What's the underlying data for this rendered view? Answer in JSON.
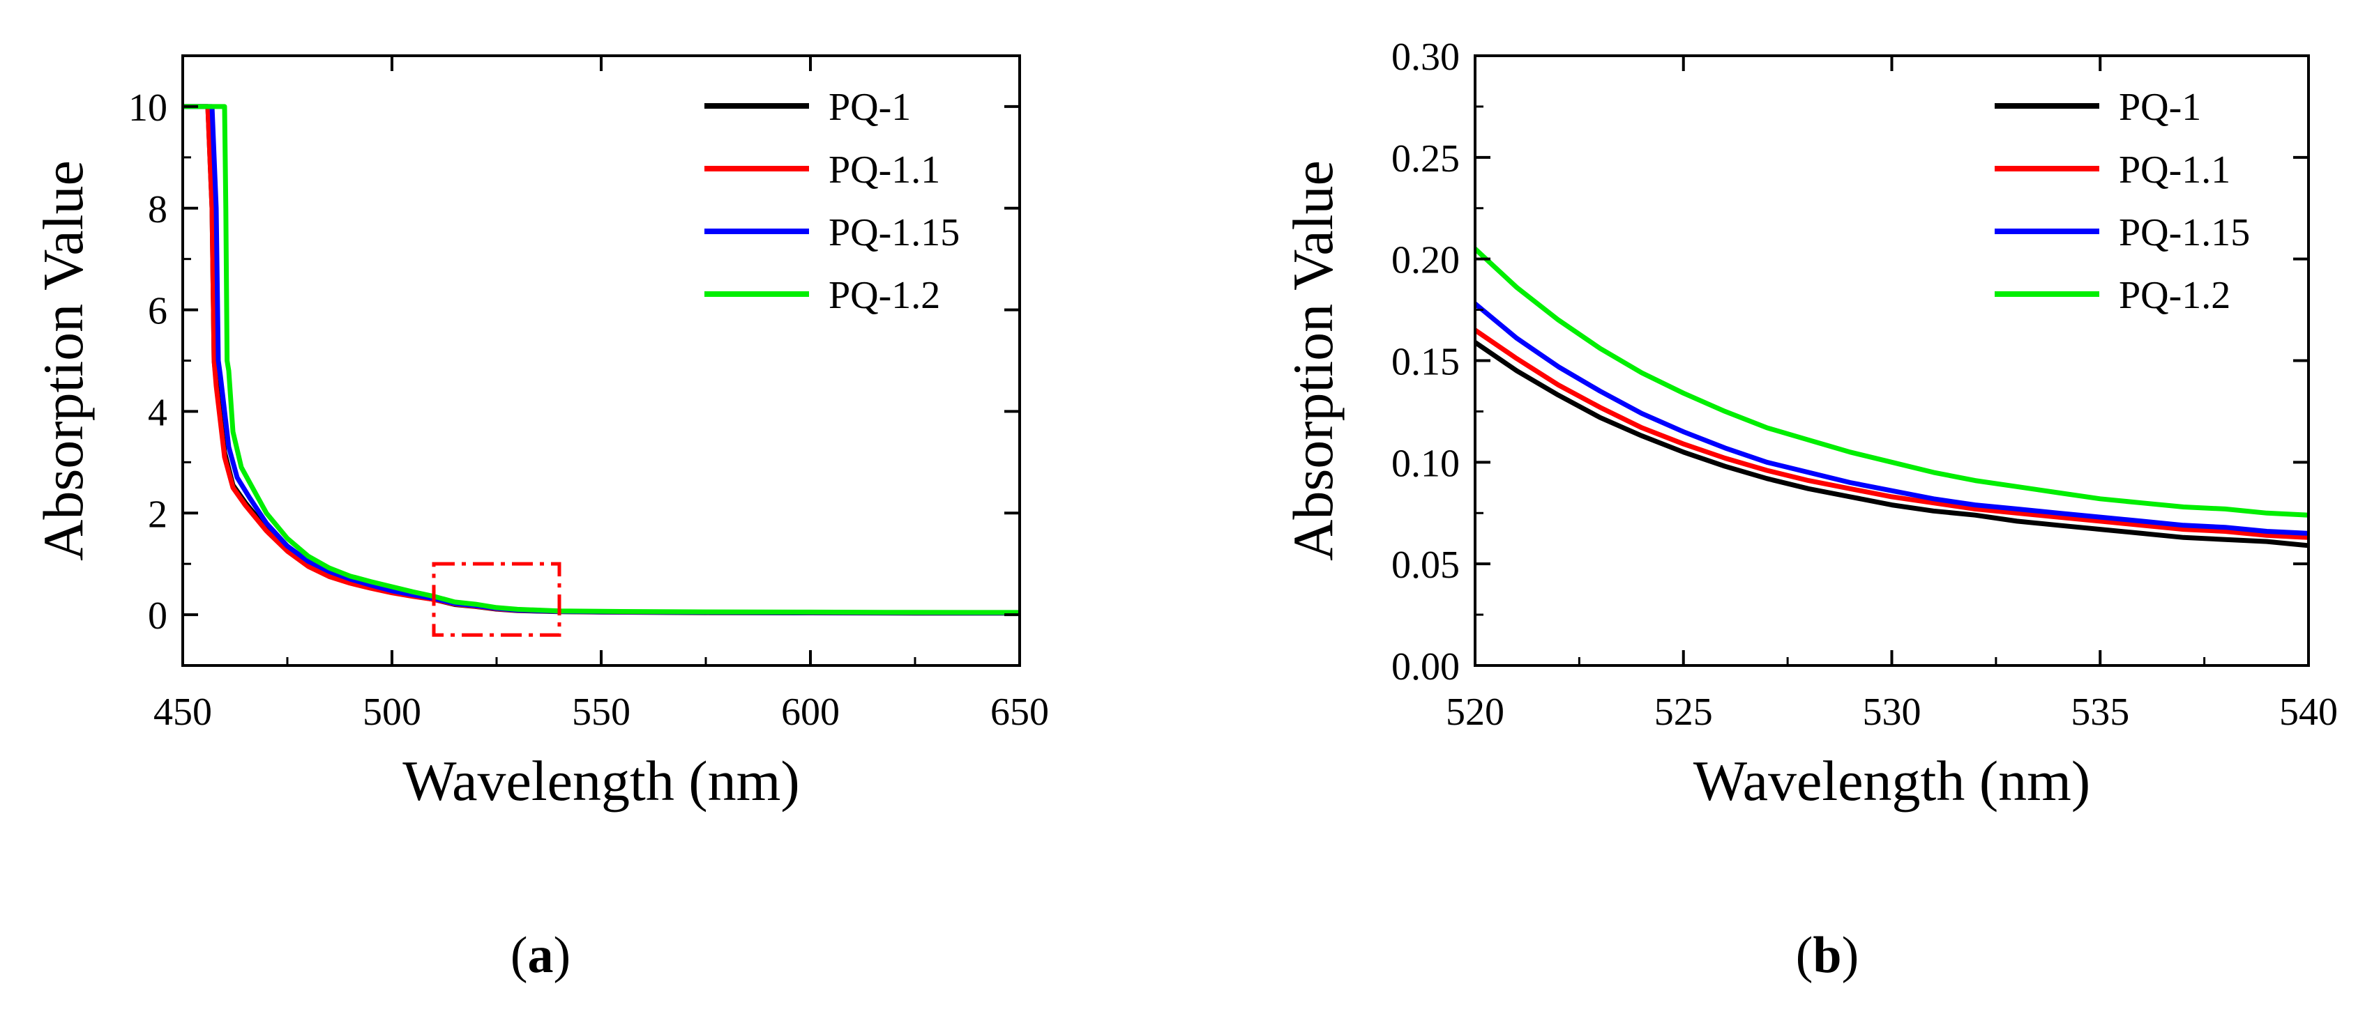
{
  "chart_data": [
    {
      "panel": "a",
      "type": "line",
      "xlabel": "Wavelength (nm)",
      "ylabel": "Absorption Value",
      "xlim": [
        450,
        650
      ],
      "ylim": [
        -1,
        11
      ],
      "xticks": [
        450,
        500,
        550,
        600,
        650
      ],
      "yticks": [
        0,
        2,
        4,
        6,
        8,
        10
      ],
      "legend_position": "top-right",
      "zoom_region": {
        "x": [
          510,
          540
        ],
        "y": [
          -0.4,
          1.0
        ],
        "color": "#ff0000",
        "style": "dash-dot"
      },
      "series": [
        {
          "name": "PQ-1",
          "color": "#000000",
          "x": [
            450,
            456,
            457,
            457.5,
            458,
            460,
            462,
            465,
            470,
            475,
            480,
            485,
            490,
            495,
            500,
            505,
            510,
            515,
            520,
            525,
            530,
            540,
            550,
            575,
            600,
            625,
            650
          ],
          "y": [
            10,
            10,
            8,
            5,
            4.6,
            3.2,
            2.55,
            2.2,
            1.7,
            1.3,
            1.0,
            0.8,
            0.65,
            0.55,
            0.45,
            0.37,
            0.3,
            0.2,
            0.16,
            0.11,
            0.08,
            0.06,
            0.05,
            0.04,
            0.035,
            0.03,
            0.03
          ]
        },
        {
          "name": "PQ-1.1",
          "color": "#ff0000",
          "x": [
            450,
            456,
            457,
            457.5,
            458,
            460,
            462,
            465,
            470,
            475,
            480,
            485,
            490,
            495,
            500,
            505,
            510,
            515,
            520,
            525,
            530,
            540,
            550,
            575,
            600,
            625,
            650
          ],
          "y": [
            10,
            10,
            8,
            5,
            4.5,
            3.1,
            2.5,
            2.15,
            1.65,
            1.25,
            0.95,
            0.75,
            0.62,
            0.52,
            0.43,
            0.36,
            0.3,
            0.21,
            0.165,
            0.115,
            0.085,
            0.064,
            0.055,
            0.045,
            0.04,
            0.035,
            0.035
          ]
        },
        {
          "name": "PQ-1.15",
          "color": "#0000ff",
          "x": [
            450,
            457,
            458,
            458.5,
            459,
            461,
            463,
            466,
            470,
            475,
            480,
            485,
            490,
            495,
            500,
            505,
            510,
            515,
            520,
            525,
            530,
            540,
            550,
            575,
            600,
            625,
            650
          ],
          "y": [
            10,
            10,
            8,
            5,
            4.7,
            3.3,
            2.7,
            2.3,
            1.8,
            1.35,
            1.05,
            0.85,
            0.7,
            0.58,
            0.47,
            0.39,
            0.32,
            0.22,
            0.178,
            0.125,
            0.09,
            0.066,
            0.058,
            0.048,
            0.042,
            0.038,
            0.037
          ]
        },
        {
          "name": "PQ-1.2",
          "color": "#00ee00",
          "x": [
            450,
            460,
            460.3,
            460.6,
            461,
            462,
            464,
            467,
            470,
            475,
            480,
            485,
            490,
            495,
            500,
            505,
            510,
            515,
            520,
            525,
            530,
            540,
            550,
            575,
            600,
            625,
            650
          ],
          "y": [
            10,
            10,
            8,
            5,
            4.8,
            3.6,
            2.9,
            2.45,
            2.0,
            1.5,
            1.15,
            0.92,
            0.76,
            0.65,
            0.55,
            0.45,
            0.36,
            0.25,
            0.205,
            0.14,
            0.105,
            0.074,
            0.065,
            0.055,
            0.05,
            0.045,
            0.043
          ]
        }
      ]
    },
    {
      "panel": "b",
      "type": "line",
      "xlabel": "Wavelength (nm)",
      "ylabel": "Absorption Value",
      "xlim": [
        520,
        540
      ],
      "ylim": [
        0,
        0.3
      ],
      "xticks": [
        520,
        525,
        530,
        535,
        540
      ],
      "yticks": [
        0,
        0.05,
        0.1,
        0.15,
        0.2,
        0.25,
        0.3
      ],
      "legend_position": "top-right",
      "series": [
        {
          "name": "PQ-1",
          "color": "#000000",
          "x": [
            520,
            521,
            522,
            523,
            524,
            525,
            526,
            527,
            528,
            529,
            530,
            531,
            532,
            533,
            534,
            535,
            536,
            537,
            538,
            539,
            540
          ],
          "y": [
            0.159,
            0.145,
            0.133,
            0.122,
            0.113,
            0.105,
            0.098,
            0.092,
            0.087,
            0.083,
            0.079,
            0.076,
            0.074,
            0.071,
            0.069,
            0.067,
            0.065,
            0.063,
            0.062,
            0.061,
            0.059
          ]
        },
        {
          "name": "PQ-1.1",
          "color": "#ff0000",
          "x": [
            520,
            521,
            522,
            523,
            524,
            525,
            526,
            527,
            528,
            529,
            530,
            531,
            532,
            533,
            534,
            535,
            536,
            537,
            538,
            539,
            540
          ],
          "y": [
            0.165,
            0.151,
            0.138,
            0.127,
            0.117,
            0.109,
            0.102,
            0.096,
            0.091,
            0.087,
            0.083,
            0.08,
            0.077,
            0.075,
            0.073,
            0.071,
            0.069,
            0.067,
            0.066,
            0.064,
            0.063
          ]
        },
        {
          "name": "PQ-1.15",
          "color": "#0000ff",
          "x": [
            520,
            521,
            522,
            523,
            524,
            525,
            526,
            527,
            528,
            529,
            530,
            531,
            532,
            533,
            534,
            535,
            536,
            537,
            538,
            539,
            540
          ],
          "y": [
            0.178,
            0.161,
            0.147,
            0.135,
            0.124,
            0.115,
            0.107,
            0.1,
            0.095,
            0.09,
            0.086,
            0.082,
            0.079,
            0.077,
            0.075,
            0.073,
            0.071,
            0.069,
            0.068,
            0.066,
            0.065
          ]
        },
        {
          "name": "PQ-1.2",
          "color": "#00ee00",
          "x": [
            520,
            521,
            522,
            523,
            524,
            525,
            526,
            527,
            528,
            529,
            530,
            531,
            532,
            533,
            534,
            535,
            536,
            537,
            538,
            539,
            540
          ],
          "y": [
            0.205,
            0.186,
            0.17,
            0.156,
            0.144,
            0.134,
            0.125,
            0.117,
            0.111,
            0.105,
            0.1,
            0.095,
            0.091,
            0.088,
            0.085,
            0.082,
            0.08,
            0.078,
            0.077,
            0.075,
            0.074
          ]
        }
      ]
    }
  ],
  "captions": {
    "a": {
      "open": "(",
      "letter": "a",
      "close": ")"
    },
    "b": {
      "open": "(",
      "letter": "b",
      "close": ")"
    }
  }
}
